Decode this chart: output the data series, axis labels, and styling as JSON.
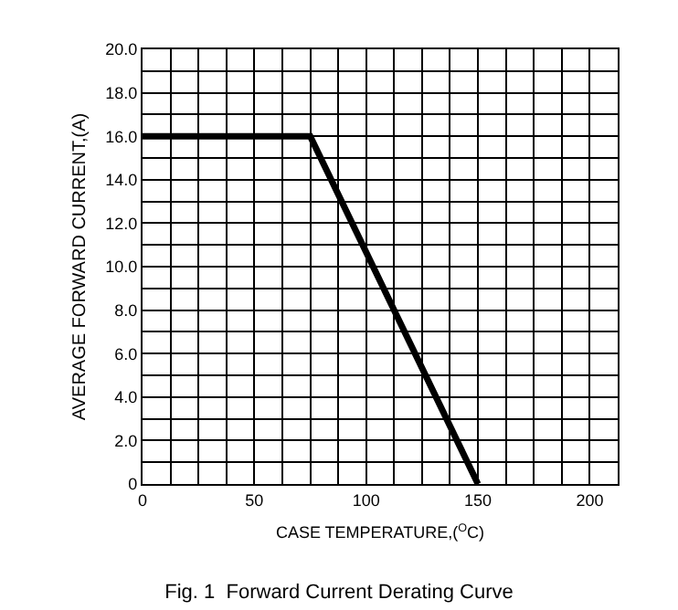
{
  "chart_data": {
    "type": "line",
    "title": "Fig. 1  Forward Current Derating Curve",
    "xlabel": "CASE TEMPERATURE,($^{O}$C)",
    "ylabel": "AVERAGE FORWARD CURRENT,(A)",
    "x": [
      0,
      75,
      150
    ],
    "series": [
      {
        "color": "#000000",
        "values": [
          16,
          16,
          0
        ]
      }
    ],
    "xlim": [
      0,
      212.5
    ],
    "xticks": [
      0,
      {
        "value": 12.5,
        "label": null
      },
      {
        "value": 25,
        "label": null
      },
      {
        "value": 37.5,
        "label": null
      },
      50,
      {
        "value": 62.5,
        "label": null
      },
      {
        "value": 75,
        "label": null
      },
      {
        "value": 87.5,
        "label": null
      },
      100,
      {
        "value": 112.5,
        "label": null
      },
      {
        "value": 125,
        "label": null
      },
      {
        "value": 137.5,
        "label": null
      },
      150,
      {
        "value": 162.5,
        "label": null
      },
      {
        "value": 175,
        "label": null
      },
      {
        "value": 187.5,
        "label": null
      },
      200,
      {
        "value": 212.5,
        "label": null
      }
    ],
    "ylim": [
      0,
      20
    ],
    "yticks": [
      0,
      {
        "value": 1,
        "label": null
      },
      {
        "value": 2,
        "label": "2.0"
      },
      {
        "value": 3,
        "label": null
      },
      {
        "value": 4,
        "label": "4.0"
      },
      {
        "value": 5,
        "label": null
      },
      {
        "value": 6,
        "label": "6.0"
      },
      {
        "value": 7,
        "label": null
      },
      {
        "value": 8,
        "label": "8.0"
      },
      {
        "value": 9,
        "label": null
      },
      {
        "value": 10,
        "label": "10.0"
      },
      {
        "value": 11,
        "label": null
      },
      {
        "value": 12,
        "label": "12.0"
      },
      {
        "value": 13,
        "label": null
      },
      {
        "value": 14,
        "label": "14.0"
      },
      {
        "value": 15,
        "label": null
      },
      {
        "value": 16,
        "label": "16.0"
      },
      {
        "value": 17,
        "label": null
      },
      {
        "value": 18,
        "label": "18.0"
      },
      {
        "value": 19,
        "label": null
      },
      {
        "value": 20,
        "label": "20.0"
      }
    ],
    "grid": true,
    "marker": "none",
    "line_style": "solid"
  }
}
